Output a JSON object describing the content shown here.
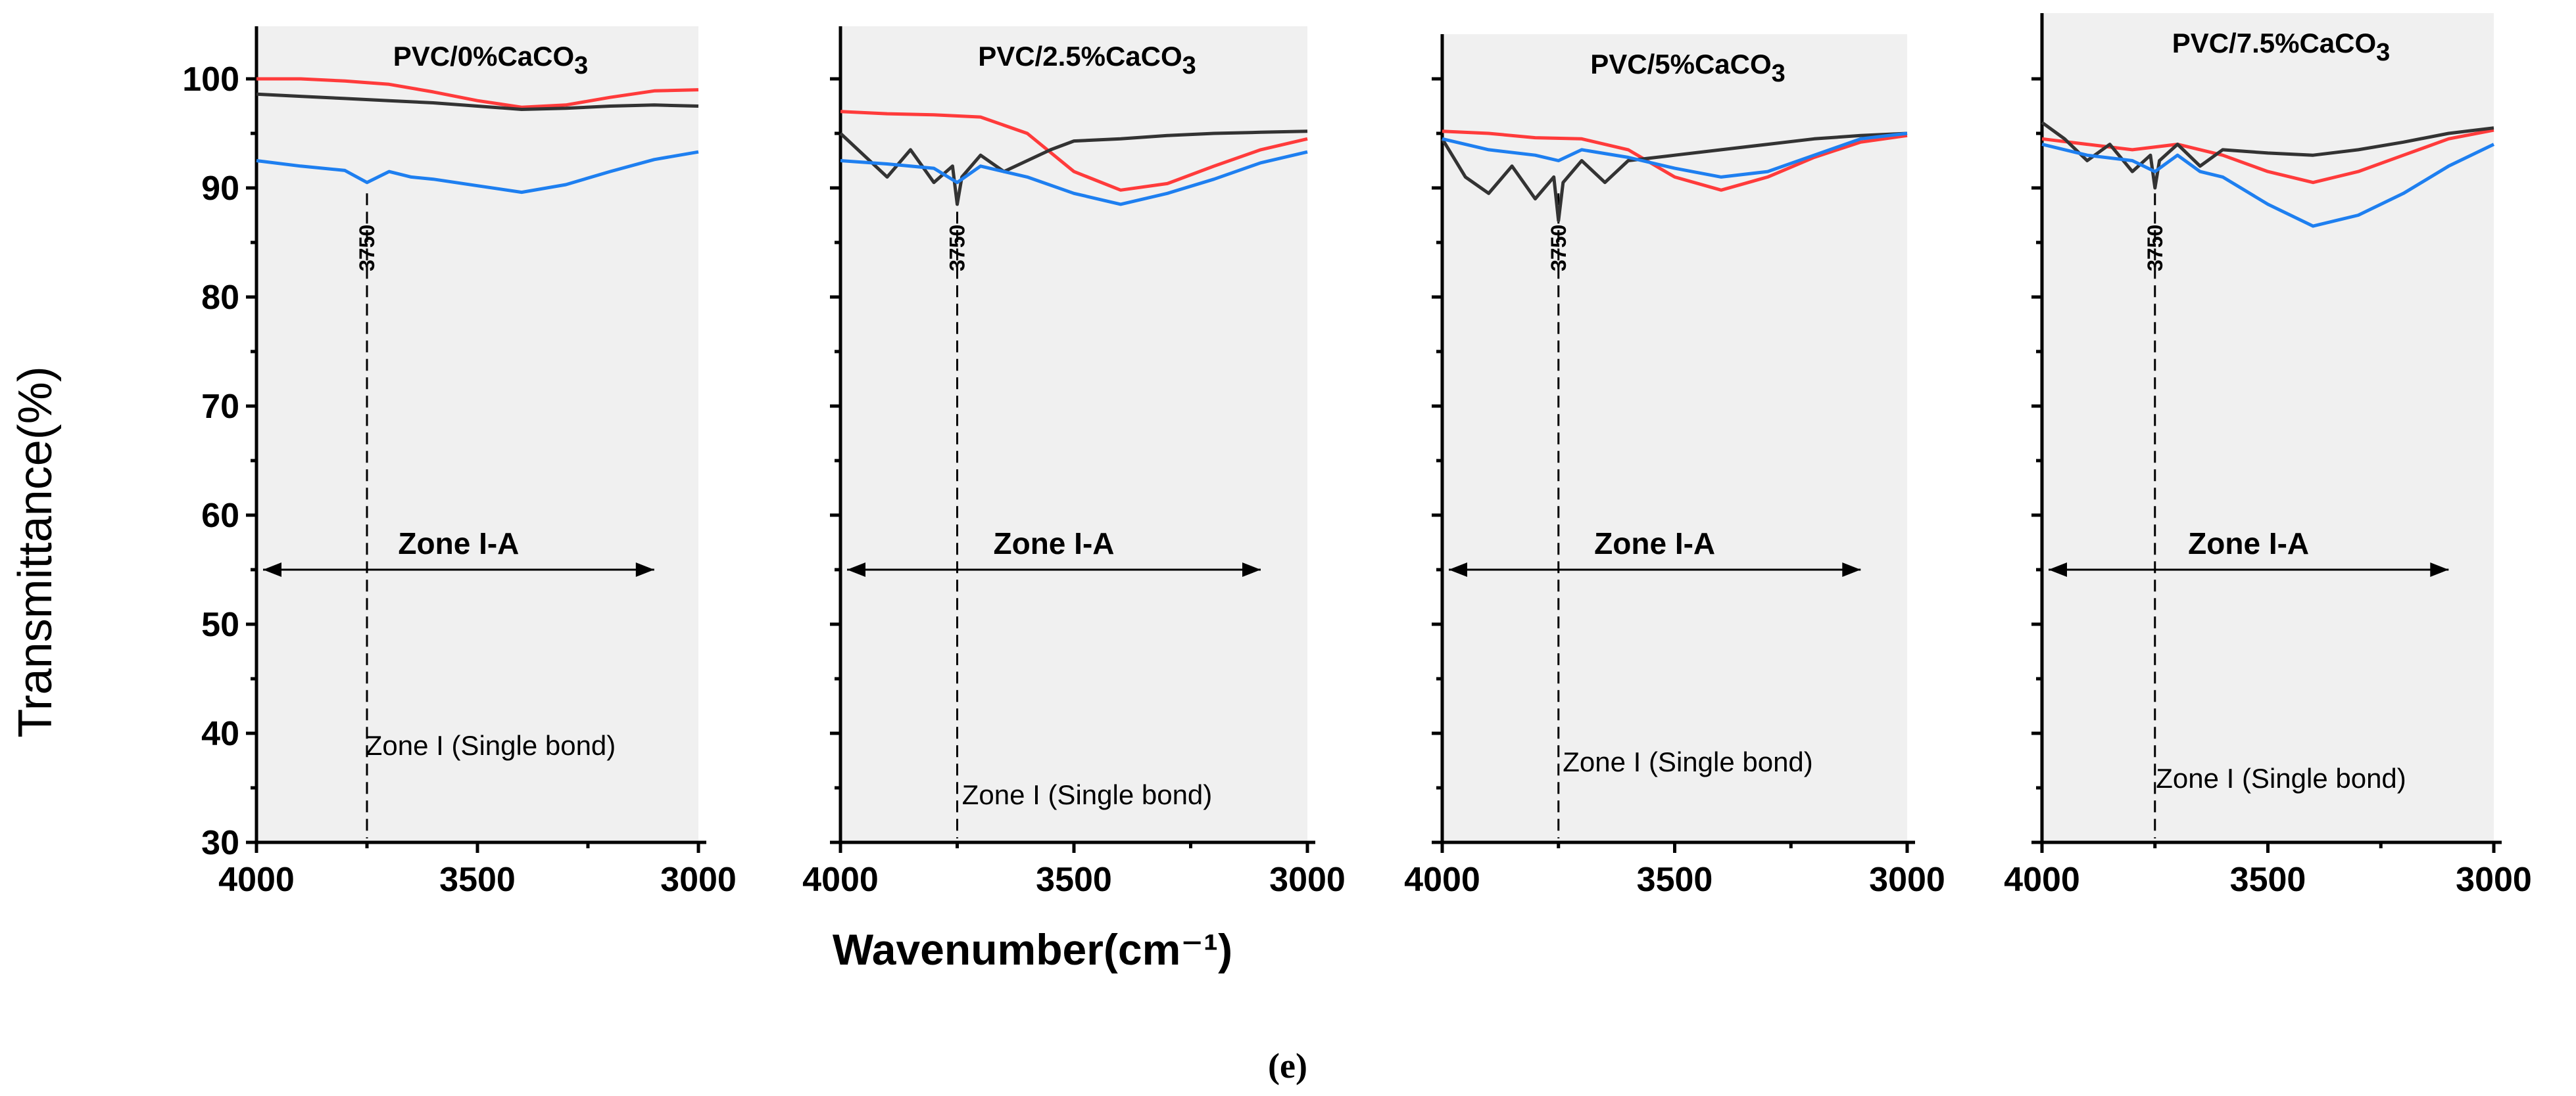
{
  "chart_data": {
    "type": "line",
    "figure_panel_label": "(e)",
    "ylabel": "Transmittance(%)",
    "xlabel": "Wavenumber(cm⁻¹)",
    "x_ticks": [
      "4000",
      "3500",
      "3000"
    ],
    "y_ticks": [
      "100",
      "90",
      "80",
      "70",
      "60",
      "50",
      "40",
      "30"
    ],
    "xlim": [
      4000,
      3000
    ],
    "ylim": [
      30,
      104
    ],
    "series_colors": {
      "red": "#ff3b3b",
      "black": "#333333",
      "blue": "#1e7ff0"
    },
    "panels": [
      {
        "title": "PVC/0%CaCO",
        "title_sub": "3",
        "peak_label": "3750",
        "peak_x": 3750,
        "zone_a_label": "Zone I-A",
        "zone_a_from": 4000,
        "zone_a_to": 3100,
        "zone_a_y": 55,
        "zone_i_label": "Zone I (Single bond)",
        "zone_i_y": 38,
        "series": [
          {
            "name": "red",
            "x": [
              4000,
              3900,
              3800,
              3700,
              3600,
              3500,
              3400,
              3300,
              3200,
              3100,
              3000
            ],
            "y": [
              100,
              100,
              99.8,
              99.5,
              98.8,
              98,
              97.4,
              97.6,
              98.3,
              98.9,
              99
            ]
          },
          {
            "name": "black",
            "x": [
              4000,
              3900,
              3800,
              3700,
              3600,
              3500,
              3400,
              3300,
              3200,
              3100,
              3000
            ],
            "y": [
              98.6,
              98.4,
              98.2,
              98.0,
              97.8,
              97.5,
              97.2,
              97.3,
              97.5,
              97.6,
              97.5
            ]
          },
          {
            "name": "blue",
            "x": [
              4000,
              3900,
              3800,
              3750,
              3700,
              3650,
              3600,
              3500,
              3400,
              3300,
              3200,
              3100,
              3000
            ],
            "y": [
              92.5,
              92,
              91.6,
              90.5,
              91.5,
              91,
              90.8,
              90.2,
              89.6,
              90.3,
              91.5,
              92.6,
              93.3
            ]
          }
        ]
      },
      {
        "title": "PVC/2.5%CaCO",
        "title_sub": "3",
        "peak_label": "3750",
        "peak_x": 3750,
        "zone_a_label": "Zone I-A",
        "zone_a_from": 4000,
        "zone_a_to": 3100,
        "zone_a_y": 55,
        "zone_i_label": "Zone I (Single bond)",
        "zone_i_y": 33.5,
        "series": [
          {
            "name": "red",
            "x": [
              4000,
              3900,
              3800,
              3700,
              3600,
              3500,
              3400,
              3300,
              3200,
              3100,
              3000
            ],
            "y": [
              97,
              96.8,
              96.7,
              96.5,
              95,
              91.5,
              89.8,
              90.4,
              92,
              93.5,
              94.5
            ]
          },
          {
            "name": "black",
            "x": [
              4000,
              3950,
              3900,
              3850,
              3800,
              3760,
              3750,
              3740,
              3700,
              3650,
              3600,
              3550,
              3500,
              3400,
              3300,
              3200,
              3100,
              3000
            ],
            "y": [
              95,
              93,
              91,
              93.5,
              90.5,
              92,
              88.5,
              91,
              93,
              91.5,
              92.5,
              93.5,
              94.3,
              94.5,
              94.8,
              95,
              95.1,
              95.2
            ]
          },
          {
            "name": "blue",
            "x": [
              4000,
              3900,
              3800,
              3750,
              3700,
              3600,
              3500,
              3400,
              3300,
              3200,
              3100,
              3000
            ],
            "y": [
              92.5,
              92.2,
              91.8,
              90.5,
              92,
              91,
              89.5,
              88.5,
              89.5,
              90.8,
              92.3,
              93.3
            ]
          }
        ]
      },
      {
        "title": "PVC/5%CaCO",
        "title_sub": "3",
        "peak_label": "3750",
        "peak_x": 3750,
        "zone_a_label": "Zone I-A",
        "zone_a_from": 4000,
        "zone_a_to": 3100,
        "zone_a_y": 55,
        "zone_i_label": "Zone I (Single bond)",
        "zone_i_y": 36.5,
        "series": [
          {
            "name": "red",
            "x": [
              4000,
              3900,
              3800,
              3700,
              3600,
              3500,
              3400,
              3300,
              3200,
              3100,
              3000
            ],
            "y": [
              95.2,
              95,
              94.6,
              94.5,
              93.5,
              91,
              89.8,
              91,
              92.8,
              94.2,
              94.8
            ]
          },
          {
            "name": "black",
            "x": [
              4000,
              3950,
              3900,
              3850,
              3800,
              3760,
              3750,
              3740,
              3700,
              3650,
              3600,
              3500,
              3400,
              3300,
              3200,
              3100,
              3000
            ],
            "y": [
              94.5,
              91,
              89.5,
              92,
              89,
              91,
              87,
              90.5,
              92.5,
              90.5,
              92.5,
              93,
              93.5,
              94,
              94.5,
              94.8,
              95
            ]
          },
          {
            "name": "blue",
            "x": [
              4000,
              3900,
              3800,
              3750,
              3700,
              3600,
              3500,
              3400,
              3300,
              3200,
              3100,
              3000
            ],
            "y": [
              94.5,
              93.5,
              93,
              92.5,
              93.5,
              92.8,
              91.8,
              91,
              91.5,
              93,
              94.5,
              95
            ]
          }
        ]
      },
      {
        "title": "PVC/7.5%CaCO",
        "title_sub": "3",
        "peak_label": "3750",
        "peak_x": 3750,
        "zone_a_label": "Zone I-A",
        "zone_a_from": 4000,
        "zone_a_to": 3100,
        "zone_a_y": 55,
        "zone_i_label": "Zone I (Single bond)",
        "zone_i_y": 35,
        "series": [
          {
            "name": "red",
            "x": [
              4000,
              3900,
              3800,
              3700,
              3600,
              3500,
              3400,
              3300,
              3200,
              3100,
              3000
            ],
            "y": [
              94.5,
              94,
              93.5,
              94,
              93,
              91.5,
              90.5,
              91.5,
              93,
              94.5,
              95.3
            ]
          },
          {
            "name": "black",
            "x": [
              4000,
              3950,
              3900,
              3850,
              3800,
              3760,
              3750,
              3740,
              3700,
              3650,
              3600,
              3500,
              3400,
              3300,
              3200,
              3100,
              3000
            ],
            "y": [
              96,
              94.5,
              92.5,
              94,
              91.5,
              93,
              90,
              92.5,
              94,
              92,
              93.5,
              93.2,
              93,
              93.5,
              94.2,
              95,
              95.5
            ]
          },
          {
            "name": "blue",
            "x": [
              4000,
              3900,
              3800,
              3750,
              3700,
              3650,
              3600,
              3500,
              3400,
              3300,
              3200,
              3100,
              3000
            ],
            "y": [
              94,
              93,
              92.5,
              91.5,
              93,
              91.5,
              91,
              88.5,
              86.5,
              87.5,
              89.5,
              92,
              94
            ]
          }
        ]
      }
    ]
  }
}
